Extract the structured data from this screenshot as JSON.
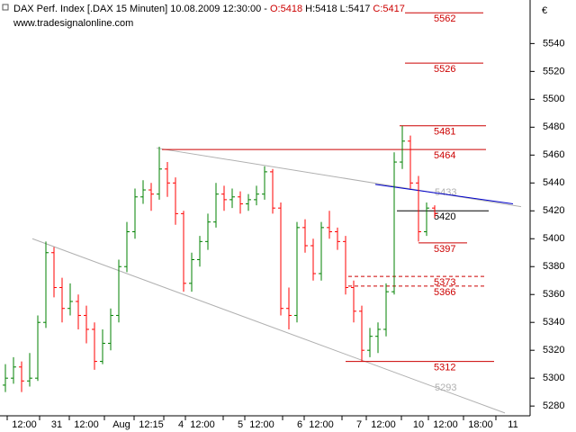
{
  "chart_data": {
    "type": "ohlc",
    "header": {
      "symbol": "DAX Perf. Index [.DAX  15 Minuten]",
      "datetime": "10.08.2009 12:30:00",
      "separator": "-",
      "open": "O:5418",
      "high_low": "H:5418 L:5417",
      "close": "C:5417"
    },
    "source": "www.tradesignalonline.com",
    "currency": "€",
    "up_color": "#008000",
    "down_color": "#ff0000",
    "x": [
      2,
      5,
      8,
      11,
      14,
      17,
      20,
      23,
      26,
      29,
      32,
      35,
      38,
      41,
      44,
      47,
      50,
      53,
      56,
      59,
      62,
      65,
      68,
      71,
      74,
      77,
      80,
      83,
      86,
      89,
      92,
      95,
      98,
      101,
      104,
      107,
      110,
      113,
      116,
      119,
      122,
      125,
      128,
      131,
      134,
      137,
      140,
      143,
      146,
      149,
      152,
      155,
      158,
      161
    ],
    "open": [
      5295,
      5300,
      5308,
      5298,
      5300,
      5340,
      5390,
      5365,
      5350,
      5355,
      5345,
      5335,
      5312,
      5325,
      5345,
      5380,
      5405,
      5430,
      5435,
      5432,
      5450,
      5440,
      5418,
      5368,
      5385,
      5398,
      5412,
      5432,
      5428,
      5430,
      5425,
      5428,
      5432,
      5448,
      5422,
      5350,
      5345,
      5408,
      5395,
      5375,
      5408,
      5405,
      5398,
      5365,
      5348,
      5320,
      5330,
      5335,
      5362,
      5455,
      5470,
      5440,
      5405,
      5422
    ],
    "high": [
      5310,
      5315,
      5312,
      5318,
      5345,
      5398,
      5394,
      5372,
      5368,
      5360,
      5352,
      5340,
      5335,
      5350,
      5385,
      5412,
      5436,
      5442,
      5440,
      5466,
      5455,
      5444,
      5420,
      5390,
      5402,
      5418,
      5440,
      5438,
      5436,
      5434,
      5432,
      5438,
      5452,
      5450,
      5426,
      5365,
      5412,
      5414,
      5400,
      5412,
      5420,
      5408,
      5402,
      5370,
      5352,
      5336,
      5340,
      5368,
      5462,
      5481,
      5474,
      5445,
      5426,
      5424
    ],
    "low": [
      5290,
      5296,
      5290,
      5294,
      5298,
      5336,
      5358,
      5340,
      5345,
      5335,
      5325,
      5306,
      5310,
      5320,
      5340,
      5376,
      5400,
      5425,
      5420,
      5428,
      5430,
      5410,
      5362,
      5362,
      5380,
      5392,
      5408,
      5420,
      5422,
      5418,
      5420,
      5424,
      5428,
      5418,
      5345,
      5335,
      5340,
      5390,
      5370,
      5370,
      5400,
      5392,
      5360,
      5340,
      5312,
      5315,
      5318,
      5330,
      5360,
      5450,
      5436,
      5398,
      5402,
      5415
    ],
    "close": [
      5300,
      5308,
      5298,
      5300,
      5340,
      5390,
      5365,
      5350,
      5355,
      5345,
      5335,
      5312,
      5325,
      5345,
      5380,
      5405,
      5430,
      5435,
      5432,
      5450,
      5440,
      5418,
      5368,
      5385,
      5398,
      5412,
      5432,
      5428,
      5430,
      5425,
      5428,
      5432,
      5448,
      5422,
      5350,
      5345,
      5408,
      5395,
      5375,
      5408,
      5405,
      5398,
      5365,
      5348,
      5320,
      5330,
      5335,
      5362,
      5455,
      5470,
      5440,
      5405,
      5422,
      5418
    ],
    "levels": [
      {
        "value": 5562,
        "from": 150,
        "to": 179,
        "color": "#cc0000",
        "dashed": false
      },
      {
        "value": 5526,
        "from": 150,
        "to": 179,
        "color": "#cc0000",
        "dashed": false
      },
      {
        "value": 5481,
        "from": 148,
        "to": 180,
        "color": "#cc0000",
        "dashed": false
      },
      {
        "value": 5464,
        "from": 60,
        "to": 180,
        "color": "#cc0000",
        "dashed": false
      },
      {
        "value": 5420,
        "from": 147,
        "to": 181,
        "color": "#000000",
        "dashed": false
      },
      {
        "value": 5397,
        "from": 155,
        "to": 173,
        "color": "#cc0000",
        "dashed": false
      },
      {
        "value": 5373,
        "from": 129,
        "to": 180,
        "color": "#cc0000",
        "dashed": true
      },
      {
        "value": 5366,
        "from": 129,
        "to": 180,
        "color": "#cc0000",
        "dashed": true
      },
      {
        "value": 5312,
        "from": 128,
        "to": 183,
        "color": "#cc0000",
        "dashed": false
      }
    ],
    "trendlines": [
      {
        "x": [
          58,
          193
        ],
        "y": [
          5465,
          5423
        ],
        "color": "#b0b0b0",
        "label": 5433,
        "label_x": 161
      },
      {
        "x": [
          12,
          187
        ],
        "y": [
          5400,
          5275
        ],
        "color": "#b0b0b0",
        "label": 5293,
        "label_x": 161
      },
      {
        "x": [
          139,
          190
        ],
        "y": [
          5439,
          5425
        ],
        "color": "#0000cc"
      }
    ],
    "xlim": [
      0,
      196
    ],
    "ylim": [
      5273,
      5568
    ],
    "yticks": [
      5280,
      5300,
      5320,
      5340,
      5360,
      5380,
      5400,
      5420,
      5440,
      5460,
      5480,
      5500,
      5520,
      5540
    ],
    "xticks": [
      {
        "value": 9,
        "label": "12:00"
      },
      {
        "value": 21,
        "label": "31"
      },
      {
        "value": 32,
        "label": "12:00"
      },
      {
        "value": 45,
        "label": "Aug"
      },
      {
        "value": 56,
        "label": "12:15"
      },
      {
        "value": 67,
        "label": "4"
      },
      {
        "value": 75,
        "label": "12:00"
      },
      {
        "value": 89,
        "label": "5"
      },
      {
        "value": 97,
        "label": "12:00"
      },
      {
        "value": 111,
        "label": "6"
      },
      {
        "value": 119,
        "label": "12:00"
      },
      {
        "value": 133,
        "label": "7"
      },
      {
        "value": 142,
        "label": "12:00"
      },
      {
        "value": 155,
        "label": "10"
      },
      {
        "value": 165,
        "label": "12:00"
      },
      {
        "value": 178,
        "label": "18:00"
      },
      {
        "value": 190,
        "label": "11"
      }
    ]
  }
}
